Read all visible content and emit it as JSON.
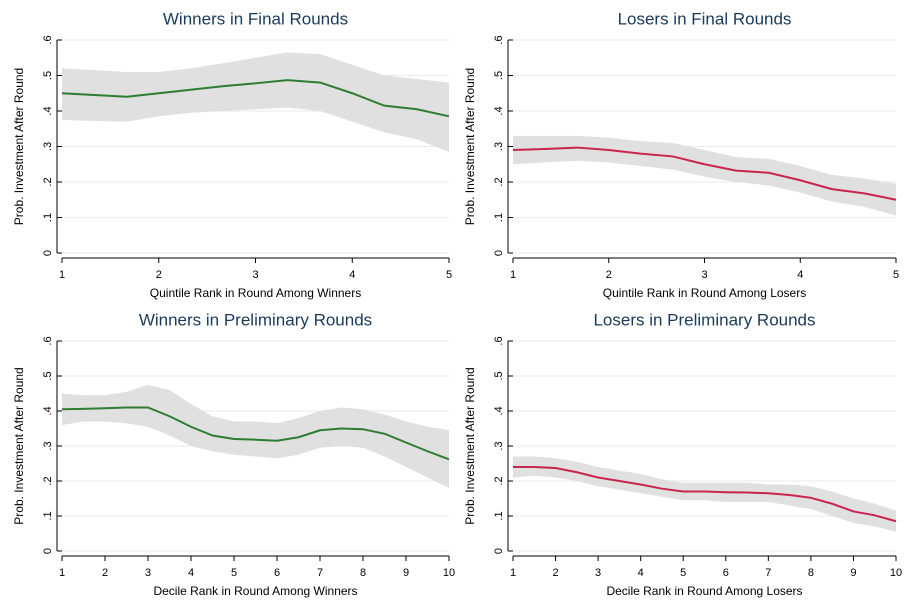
{
  "chart_data": [
    {
      "type": "line",
      "title": "Winners in Final Rounds",
      "x_label": "Quintile Rank in Round Among Winners",
      "y_label": "Prob. Investment After Round",
      "x": [
        1,
        1.33,
        1.67,
        2,
        2.33,
        2.67,
        3,
        3.33,
        3.67,
        4,
        4.33,
        4.67,
        5
      ],
      "values": [
        0.45,
        0.445,
        0.44,
        0.45,
        0.46,
        0.47,
        0.478,
        0.487,
        0.48,
        0.45,
        0.415,
        0.405,
        0.385
      ],
      "lower": [
        0.375,
        0.372,
        0.37,
        0.385,
        0.395,
        0.4,
        0.405,
        0.41,
        0.4,
        0.37,
        0.34,
        0.32,
        0.285
      ],
      "upper": [
        0.52,
        0.515,
        0.51,
        0.51,
        0.52,
        0.535,
        0.55,
        0.565,
        0.56,
        0.53,
        0.5,
        0.49,
        0.48
      ],
      "color": "#2e7d32",
      "band_color": "#e0e0e0",
      "grid": true,
      "grid_color": "#eaeaea",
      "xlim": [
        1,
        5
      ],
      "xticks": [
        1,
        2,
        3,
        4,
        5
      ],
      "ylim": [
        0,
        0.6
      ],
      "yticks": [
        0,
        {
          "value": 0.1,
          "label": ".1"
        },
        {
          "value": 0.2,
          "label": ".2"
        },
        {
          "value": 0.3,
          "label": ".3"
        },
        {
          "value": 0.4,
          "label": ".4"
        },
        {
          "value": 0.5,
          "label": ".5"
        },
        {
          "value": 0.6,
          "label": ".6"
        }
      ]
    },
    {
      "type": "line",
      "title": "Losers in Final Rounds",
      "x_label": "Quintile Rank in Round Among Losers",
      "y_label": "Prob. Investment After Round",
      "x": [
        1,
        1.33,
        1.67,
        2,
        2.33,
        2.67,
        3,
        3.33,
        3.67,
        4,
        4.33,
        4.67,
        5
      ],
      "values": [
        0.29,
        0.293,
        0.297,
        0.29,
        0.28,
        0.272,
        0.25,
        0.232,
        0.226,
        0.205,
        0.18,
        0.168,
        0.15
      ],
      "lower": [
        0.25,
        0.255,
        0.26,
        0.255,
        0.245,
        0.235,
        0.215,
        0.2,
        0.19,
        0.17,
        0.145,
        0.13,
        0.105
      ],
      "upper": [
        0.33,
        0.33,
        0.33,
        0.325,
        0.315,
        0.31,
        0.29,
        0.27,
        0.265,
        0.245,
        0.22,
        0.21,
        0.195
      ],
      "color": "#c8254f",
      "band_color": "#e0e0e0",
      "grid": true,
      "grid_color": "#eaeaea",
      "xlim": [
        1,
        5
      ],
      "xticks": [
        1,
        2,
        3,
        4,
        5
      ],
      "ylim": [
        0,
        0.6
      ],
      "yticks": [
        0,
        {
          "value": 0.1,
          "label": ".1"
        },
        {
          "value": 0.2,
          "label": ".2"
        },
        {
          "value": 0.3,
          "label": ".3"
        },
        {
          "value": 0.4,
          "label": ".4"
        },
        {
          "value": 0.5,
          "label": ".5"
        },
        {
          "value": 0.6,
          "label": ".6"
        }
      ]
    },
    {
      "type": "line",
      "title": "Winners in Preliminary Rounds",
      "x_label": "Decile Rank in Round Among Winners",
      "y_label": "Prob. Investment After Round",
      "x": [
        1,
        1.5,
        2,
        2.5,
        3,
        3.5,
        4,
        4.5,
        5,
        5.5,
        6,
        6.5,
        7,
        7.5,
        8,
        8.5,
        9,
        9.5,
        10
      ],
      "values": [
        0.405,
        0.406,
        0.408,
        0.41,
        0.41,
        0.385,
        0.355,
        0.33,
        0.32,
        0.318,
        0.315,
        0.325,
        0.345,
        0.35,
        0.348,
        0.335,
        0.31,
        0.285,
        0.262
      ],
      "lower": [
        0.36,
        0.37,
        0.37,
        0.365,
        0.355,
        0.33,
        0.3,
        0.285,
        0.275,
        0.27,
        0.265,
        0.275,
        0.295,
        0.3,
        0.295,
        0.27,
        0.24,
        0.21,
        0.18
      ],
      "upper": [
        0.45,
        0.445,
        0.445,
        0.455,
        0.475,
        0.46,
        0.42,
        0.385,
        0.37,
        0.37,
        0.365,
        0.38,
        0.4,
        0.41,
        0.405,
        0.39,
        0.37,
        0.355,
        0.345
      ],
      "color": "#2e7d32",
      "band_color": "#e0e0e0",
      "grid": true,
      "grid_color": "#eaeaea",
      "xlim": [
        1,
        10
      ],
      "xticks": [
        1,
        2,
        3,
        4,
        5,
        6,
        7,
        8,
        9,
        10
      ],
      "ylim": [
        0,
        0.6
      ],
      "yticks": [
        0,
        {
          "value": 0.1,
          "label": ".1"
        },
        {
          "value": 0.2,
          "label": ".2"
        },
        {
          "value": 0.3,
          "label": ".3"
        },
        {
          "value": 0.4,
          "label": ".4"
        },
        {
          "value": 0.5,
          "label": ".5"
        },
        {
          "value": 0.6,
          "label": ".6"
        }
      ]
    },
    {
      "type": "line",
      "title": "Losers in Preliminary Rounds",
      "x_label": "Decile Rank in Round Among Losers",
      "y_label": "Prob. Investment After Round",
      "x": [
        1,
        1.5,
        2,
        2.5,
        3,
        3.5,
        4,
        4.5,
        5,
        5.5,
        6,
        6.5,
        7,
        7.5,
        8,
        8.5,
        9,
        9.5,
        10
      ],
      "values": [
        0.24,
        0.24,
        0.237,
        0.225,
        0.21,
        0.2,
        0.19,
        0.178,
        0.17,
        0.17,
        0.168,
        0.167,
        0.165,
        0.16,
        0.152,
        0.135,
        0.113,
        0.102,
        0.085
      ],
      "lower": [
        0.21,
        0.215,
        0.21,
        0.2,
        0.185,
        0.175,
        0.165,
        0.155,
        0.145,
        0.145,
        0.14,
        0.14,
        0.14,
        0.13,
        0.12,
        0.1,
        0.08,
        0.07,
        0.055
      ],
      "upper": [
        0.27,
        0.27,
        0.265,
        0.255,
        0.24,
        0.23,
        0.22,
        0.205,
        0.195,
        0.195,
        0.195,
        0.195,
        0.19,
        0.19,
        0.185,
        0.17,
        0.15,
        0.135,
        0.115
      ],
      "color": "#c8254f",
      "band_color": "#e0e0e0",
      "grid": true,
      "grid_color": "#eaeaea",
      "xlim": [
        1,
        10
      ],
      "xticks": [
        1,
        2,
        3,
        4,
        5,
        6,
        7,
        8,
        9,
        10
      ],
      "ylim": [
        0,
        0.6
      ],
      "yticks": [
        0,
        {
          "value": 0.1,
          "label": ".1"
        },
        {
          "value": 0.2,
          "label": ".2"
        },
        {
          "value": 0.3,
          "label": ".3"
        },
        {
          "value": 0.4,
          "label": ".4"
        },
        {
          "value": 0.5,
          "label": ".5"
        },
        {
          "value": 0.6,
          "label": ".6"
        }
      ]
    }
  ]
}
